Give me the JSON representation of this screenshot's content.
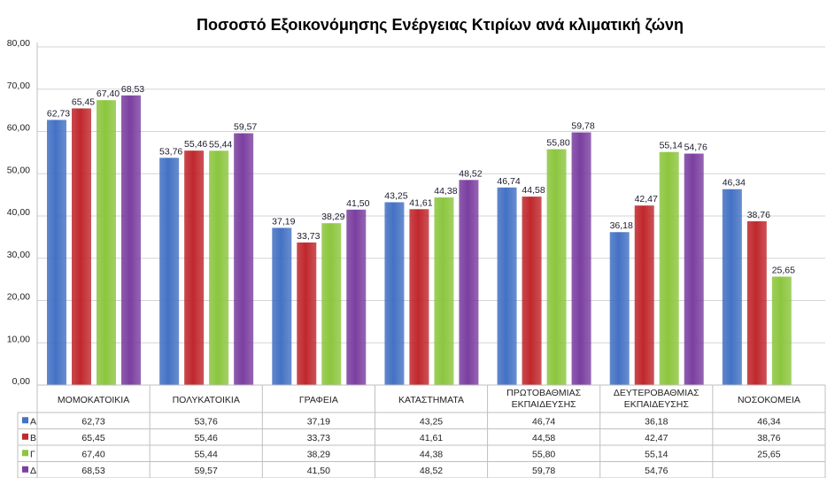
{
  "chart_data": {
    "type": "bar",
    "title": "Ποσοστό Εξοικονόμησης Ενέργειας  Κτιρίων ανά κλιματική ζώνη",
    "categories": [
      [
        "ΜΟΜΟΚΑΤΟΙΚΙΑ"
      ],
      [
        "ΠΟΛΥΚΑΤΟΙΚΙΑ"
      ],
      [
        "ΓΡΑΦΕΙΑ"
      ],
      [
        "ΚΑΤΑΣΤΗΜΑΤΑ"
      ],
      [
        "ΠΡΩΤΟΒΑΘΜΙΑΣ",
        "ΕΚΠΑΙΔΕΥΣΗΣ"
      ],
      [
        "ΔΕΥΤΕΡΟΒΑΘΜΙΑΣ",
        "ΕΚΠΑΙΔΕΥΣΗΣ"
      ],
      [
        "ΝΟΣΟΚΟΜΕΙΑ"
      ]
    ],
    "series": [
      {
        "name": "Α",
        "color": "#4472C4",
        "values": [
          62.73,
          53.76,
          37.19,
          43.25,
          46.74,
          36.18,
          46.34
        ],
        "labels": [
          "62,73",
          "53,76",
          "37,19",
          "43,25",
          "46,74",
          "36,18",
          "46,34"
        ]
      },
      {
        "name": "Β",
        "color": "#C0282D",
        "values": [
          65.45,
          55.46,
          33.73,
          41.61,
          44.58,
          42.47,
          38.76
        ],
        "labels": [
          "65,45",
          "55,46",
          "33,73",
          "41,61",
          "44,58",
          "42,47",
          "38,76"
        ]
      },
      {
        "name": "Γ",
        "color": "#8CC63F",
        "values": [
          67.4,
          55.44,
          38.29,
          44.38,
          55.8,
          55.14,
          25.65
        ],
        "labels": [
          "67,40",
          "55,44",
          "38,29",
          "44,38",
          "55,80",
          "55,14",
          "25,65"
        ]
      },
      {
        "name": "Δ",
        "color": "#7B3FA0",
        "values": [
          68.53,
          59.57,
          41.5,
          48.52,
          59.78,
          54.76,
          null
        ],
        "labels": [
          "68,53",
          "59,57",
          "41,50",
          "48,52",
          "59,78",
          "54,76",
          ""
        ]
      }
    ],
    "ylim": [
      0,
      80
    ],
    "yticks": [
      "0,00",
      "10,00",
      "20,00",
      "30,00",
      "40,00",
      "50,00",
      "60,00",
      "70,00",
      "80,00"
    ],
    "grid": true,
    "legend": "data-table"
  }
}
